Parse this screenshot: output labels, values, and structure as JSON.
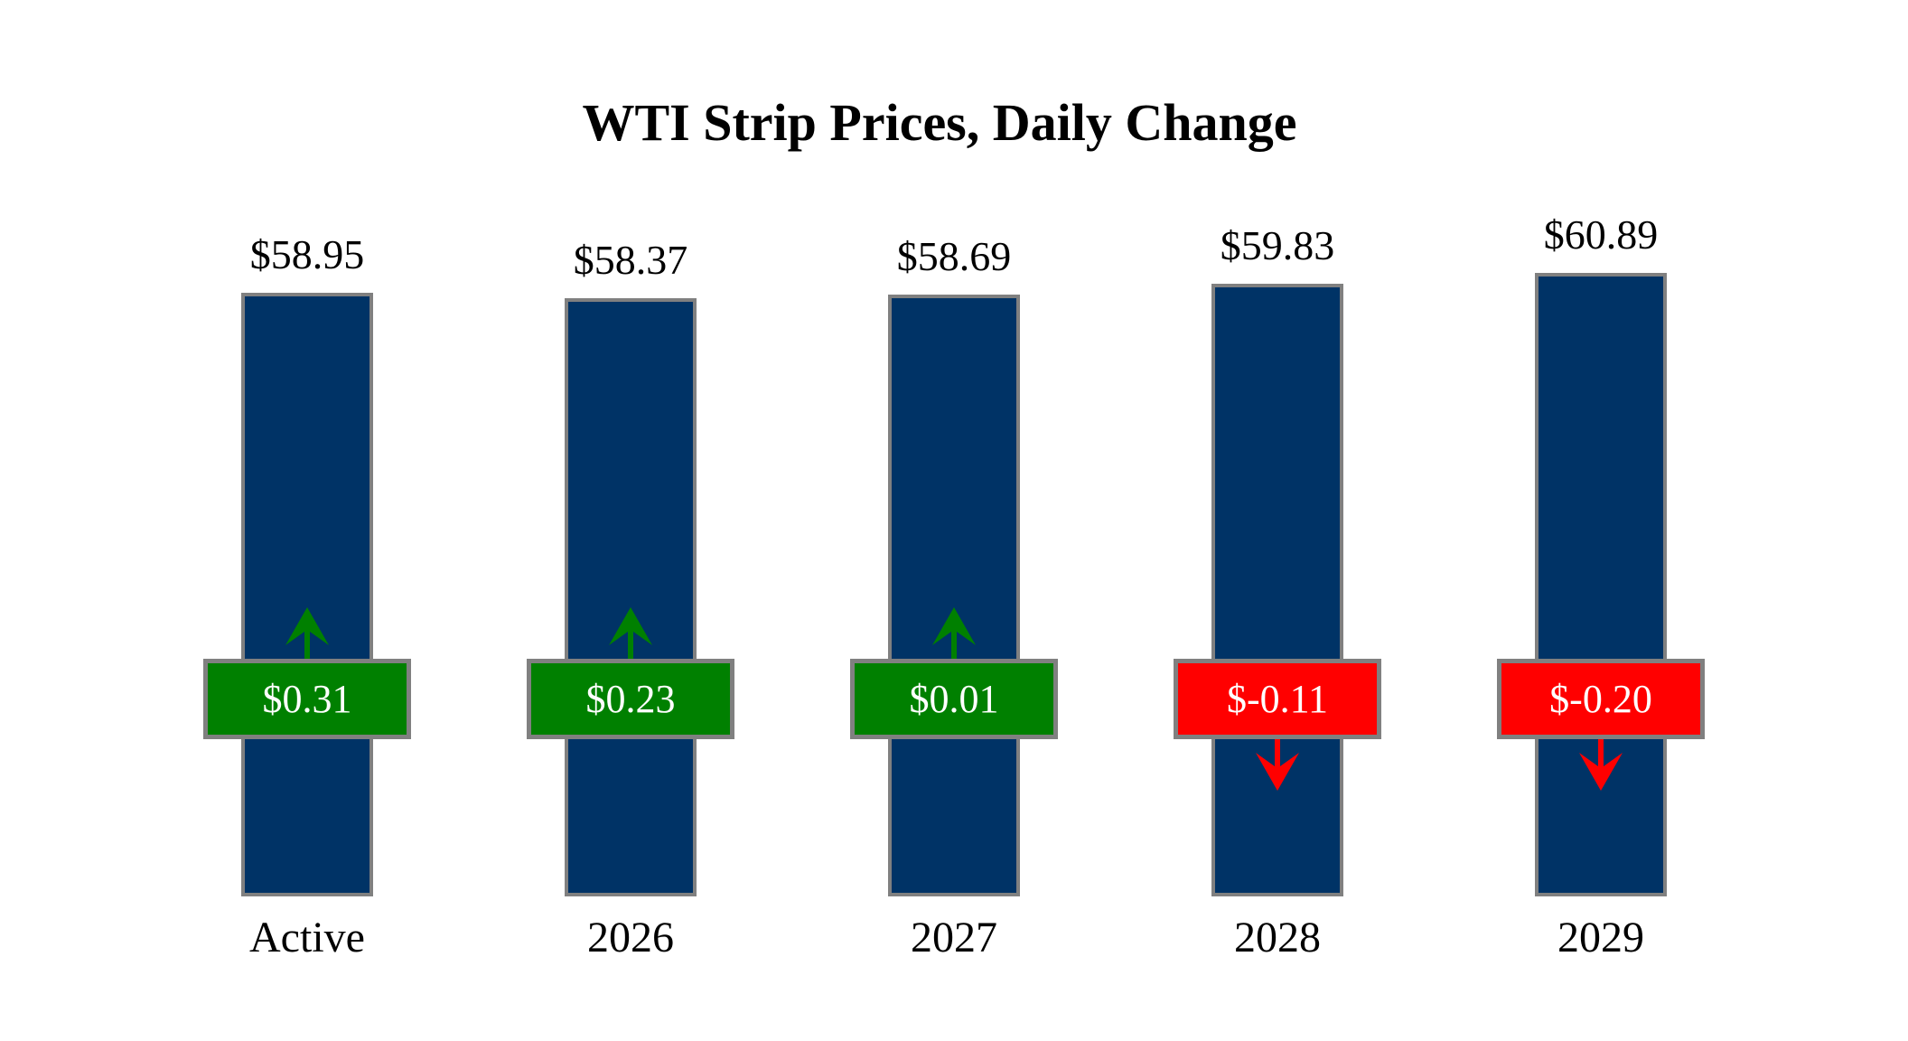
{
  "title": "WTI Strip Prices, Daily Change",
  "colors": {
    "background": "#FFFFFF",
    "bar_fill": "#003366",
    "bar_border": "#808080",
    "badge_border": "#808080",
    "badge_text": "#FFFFFF",
    "positive": "#008000",
    "negative": "#FF0000",
    "label_text": "#000000"
  },
  "chart_data": {
    "type": "bar",
    "title": "WTI Strip Prices, Daily Change",
    "categories": [
      "Active",
      "2026",
      "2027",
      "2028",
      "2029"
    ],
    "series": [
      {
        "name": "Strip Price",
        "values": [
          58.95,
          58.37,
          58.69,
          59.83,
          60.89
        ]
      },
      {
        "name": "Daily Change",
        "values": [
          0.31,
          0.23,
          0.01,
          -0.11,
          -0.2
        ]
      }
    ],
    "price_labels": [
      "$58.95",
      "$58.37",
      "$58.69",
      "$59.83",
      "$60.89"
    ],
    "change_labels": [
      "$0.31",
      "$0.23",
      "$0.01",
      "$-0.11",
      "$-0.20"
    ],
    "change_directions": [
      "up",
      "up",
      "up",
      "down",
      "down"
    ],
    "legend": "none",
    "grid": false,
    "axes_hidden": true
  }
}
